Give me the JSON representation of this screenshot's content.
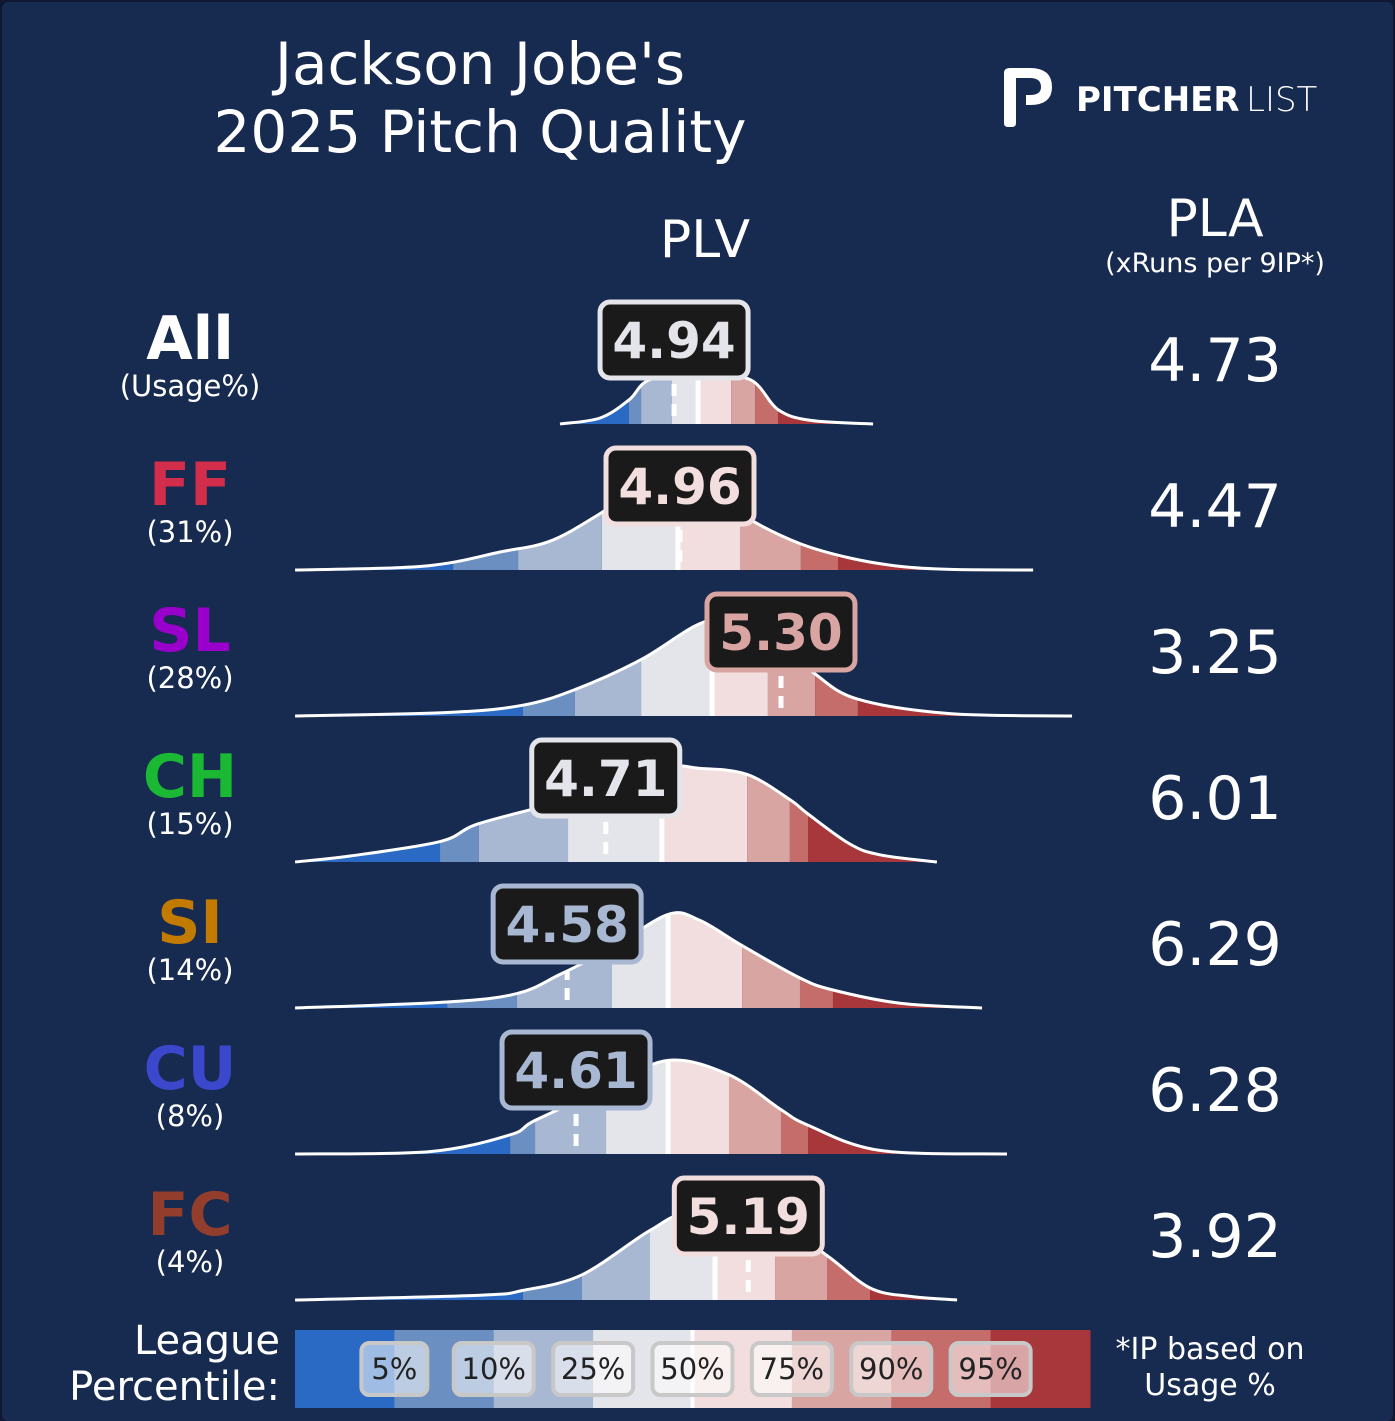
{
  "title_line1": "Jackson Jobe's",
  "title_line2": "2025 Pitch Quality",
  "logo": {
    "brand_bold": "PITCHER",
    "brand_light": "LIST"
  },
  "headers": {
    "plv": "PLV",
    "pla": "PLA",
    "pla_sub": "(xRuns per 9IP*)"
  },
  "legend": {
    "label_line1": "League",
    "label_line2": "Percentile:",
    "percentiles": [
      "5%",
      "10%",
      "25%",
      "50%",
      "75%",
      "90%",
      "95%"
    ],
    "bin_colors": [
      "#2a6ac4",
      "#6b8fc0",
      "#a9b8d2",
      "#e4e5ea",
      "#f2dede",
      "#d9a5a3",
      "#c46d6b",
      "#a8373b"
    ]
  },
  "footnote_line1": "*IP based on",
  "footnote_line2": "Usage %",
  "colors": {
    "background": "#172a50",
    "box_fill": "#1a1a1a"
  },
  "chart_data": {
    "type": "ridgeline",
    "title": "Jackson Jobe's 2025 Pitch Quality",
    "xlabel": "PLV",
    "x_unit": "PLV",
    "rows": [
      {
        "pitch": "All",
        "usage": "(Usage%)",
        "color": "#ffffff",
        "plv": 4.94,
        "plv_label": "4.94",
        "pla": "4.73",
        "percentile_bounds": [
          4.788,
          4.829,
          4.933,
          5.021,
          5.132,
          5.213,
          5.29
        ],
        "median": 5.021,
        "density": [
          [
            4.556,
            0
          ],
          [
            4.691,
            0.05
          ],
          [
            4.788,
            0.2
          ],
          [
            4.859,
            0.37
          ],
          [
            5.027,
            0.42
          ],
          [
            5.196,
            0.37
          ],
          [
            5.29,
            0.12
          ],
          [
            5.4,
            0.03
          ],
          [
            5.61,
            0
          ]
        ]
      },
      {
        "pitch": "FF",
        "usage": "(31%)",
        "color": "#d32d4c",
        "plv": 4.96,
        "plv_label": "4.96",
        "pla": "4.47",
        "percentile_bounds": [
          4.196,
          4.415,
          4.697,
          4.953,
          5.162,
          5.367,
          5.492
        ],
        "median": 4.953,
        "density": [
          [
            3.664,
            0
          ],
          [
            4.017,
            0.02
          ],
          [
            4.186,
            0.06
          ],
          [
            4.354,
            0.15
          ],
          [
            4.522,
            0.24
          ],
          [
            4.691,
            0.47
          ],
          [
            4.859,
            0.75
          ],
          [
            5.027,
            0.7
          ],
          [
            5.196,
            0.42
          ],
          [
            5.364,
            0.22
          ],
          [
            5.532,
            0.1
          ],
          [
            5.701,
            0.03
          ],
          [
            5.869,
            0.005
          ],
          [
            6.149,
            0
          ]
        ]
      },
      {
        "pitch": "SL",
        "usage": "(28%)",
        "color": "#9a00cc",
        "plv": 5.3,
        "plv_label": "5.30",
        "pla": "3.25",
        "percentile_bounds": [
          4.431,
          4.606,
          4.829,
          5.068,
          5.256,
          5.415,
          5.559
        ],
        "median": 5.068,
        "density": [
          [
            3.664,
            0
          ],
          [
            4.186,
            0.03
          ],
          [
            4.431,
            0.09
          ],
          [
            4.606,
            0.22
          ],
          [
            4.829,
            0.47
          ],
          [
            5.027,
            0.77
          ],
          [
            5.15,
            0.8
          ],
          [
            5.3,
            0.6
          ],
          [
            5.415,
            0.35
          ],
          [
            5.559,
            0.14
          ],
          [
            5.869,
            0.02
          ],
          [
            6.28,
            0
          ]
        ]
      },
      {
        "pitch": "CH",
        "usage": "(15%)",
        "color": "#1bb834",
        "plv": 4.71,
        "plv_label": "4.71",
        "pla": "6.01",
        "percentile_bounds": [
          4.152,
          4.283,
          4.583,
          4.899,
          5.186,
          5.33,
          5.391
        ],
        "median": 4.899,
        "density": [
          [
            3.664,
            0
          ],
          [
            3.849,
            0.05
          ],
          [
            4.152,
            0.17
          ],
          [
            4.283,
            0.32
          ],
          [
            4.583,
            0.52
          ],
          [
            4.899,
            0.78
          ],
          [
            5.027,
            0.78
          ],
          [
            5.186,
            0.73
          ],
          [
            5.33,
            0.52
          ],
          [
            5.391,
            0.4
          ],
          [
            5.532,
            0.15
          ],
          [
            5.633,
            0.06
          ],
          [
            5.825,
            0
          ]
        ]
      },
      {
        "pitch": "SI",
        "usage": "(14%)",
        "color": "#c27a00",
        "plv": 4.58,
        "plv_label": "4.58",
        "pla": "6.29",
        "percentile_bounds": [
          4.176,
          4.411,
          4.731,
          4.92,
          5.169,
          5.364,
          5.475
        ],
        "median": 4.92,
        "density": [
          [
            3.664,
            0
          ],
          [
            4.176,
            0.05
          ],
          [
            4.411,
            0.12
          ],
          [
            4.556,
            0.28
          ],
          [
            4.731,
            0.5
          ],
          [
            4.92,
            0.78
          ],
          [
            5.027,
            0.73
          ],
          [
            5.169,
            0.52
          ],
          [
            5.364,
            0.25
          ],
          [
            5.475,
            0.15
          ],
          [
            5.701,
            0.04
          ],
          [
            5.977,
            0
          ]
        ]
      },
      {
        "pitch": "CU",
        "usage": "(8%)",
        "color": "#3b48cc",
        "plv": 4.61,
        "plv_label": "4.61",
        "pla": "6.28",
        "percentile_bounds": [
          4.388,
          4.472,
          4.711,
          4.92,
          5.125,
          5.3,
          5.391
        ],
        "median": 4.92,
        "density": [
          [
            3.664,
            0
          ],
          [
            4.118,
            0.02
          ],
          [
            4.388,
            0.16
          ],
          [
            4.472,
            0.28
          ],
          [
            4.711,
            0.55
          ],
          [
            4.92,
            0.78
          ],
          [
            5.125,
            0.66
          ],
          [
            5.3,
            0.37
          ],
          [
            5.391,
            0.24
          ],
          [
            5.633,
            0.03
          ],
          [
            6.061,
            0
          ]
        ]
      },
      {
        "pitch": "FC",
        "usage": "(4%)",
        "color": "#933e2c",
        "plv": 5.19,
        "plv_label": "5.19",
        "pla": "3.92",
        "percentile_bounds": [
          4.431,
          4.63,
          4.859,
          5.078,
          5.28,
          5.455,
          5.6
        ],
        "median": 5.078,
        "density": [
          [
            3.664,
            0
          ],
          [
            4.287,
            0.04
          ],
          [
            4.431,
            0.08
          ],
          [
            4.63,
            0.21
          ],
          [
            4.859,
            0.58
          ],
          [
            4.994,
            0.72
          ],
          [
            5.28,
            0.65
          ],
          [
            5.455,
            0.37
          ],
          [
            5.6,
            0.1
          ],
          [
            5.735,
            0.03
          ],
          [
            5.893,
            0
          ]
        ]
      }
    ]
  }
}
